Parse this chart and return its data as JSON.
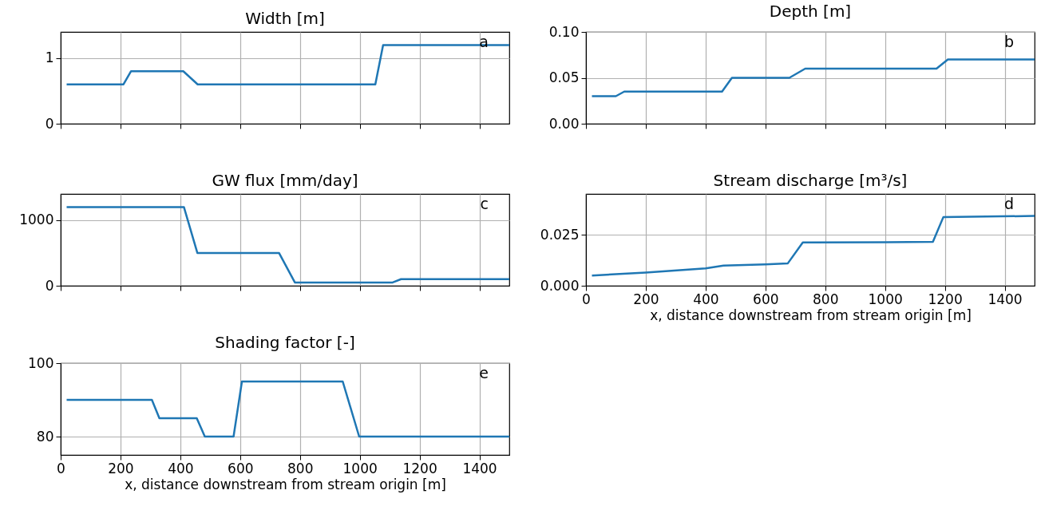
{
  "chart_data": [
    {
      "type": "line",
      "title": "Width [m]",
      "x": [
        20,
        210,
        235,
        410,
        458,
        1052,
        1078,
        1500
      ],
      "series": [
        {
          "color": "#1f77b4",
          "values": [
            0.6,
            0.6,
            0.8,
            0.8,
            0.6,
            0.6,
            1.2,
            1.2
          ]
        }
      ],
      "xlim": [
        0,
        1500
      ],
      "xticks": [
        0,
        200,
        400,
        600,
        800,
        1000,
        1200,
        1400
      ],
      "ylim": [
        0,
        1.4
      ],
      "yticks": [
        0,
        1
      ],
      "grid": true,
      "tick_labels": "y",
      "annotations": [
        "a"
      ]
    },
    {
      "type": "line",
      "title": "Depth [m]",
      "x": [
        20,
        100,
        128,
        455,
        488,
        680,
        733,
        1172,
        1210,
        1500
      ],
      "series": [
        {
          "color": "#1f77b4",
          "values": [
            0.03,
            0.03,
            0.035,
            0.035,
            0.05,
            0.05,
            0.06,
            0.06,
            0.07,
            0.07
          ]
        }
      ],
      "xlim": [
        0,
        1500
      ],
      "xticks": [
        0,
        200,
        400,
        600,
        800,
        1000,
        1200,
        1400
      ],
      "ylim": [
        0,
        0.1
      ],
      "yticks": [
        {
          "value": 0,
          "label": "0.00"
        },
        {
          "value": 0.05,
          "label": "0.05"
        },
        {
          "value": 0.1,
          "label": "0.10"
        }
      ],
      "grid": true,
      "tick_labels": "y",
      "annotations": [
        "b"
      ]
    },
    {
      "type": "line",
      "title": "GW flux [mm/day]",
      "x": [
        20,
        412,
        457,
        730,
        783,
        1110,
        1138,
        1500
      ],
      "series": [
        {
          "color": "#1f77b4",
          "values": [
            1200,
            1200,
            500,
            500,
            50,
            50,
            100,
            100
          ]
        }
      ],
      "xlim": [
        0,
        1500
      ],
      "xticks": [
        0,
        200,
        400,
        600,
        800,
        1000,
        1200,
        1400
      ],
      "ylim": [
        0,
        1400
      ],
      "yticks": [
        0,
        1000
      ],
      "grid": true,
      "tick_labels": "y",
      "annotations": [
        "c"
      ]
    },
    {
      "type": "line",
      "title": "Stream discharge [m³/s]",
      "xlabel": "x, distance downstream from stream origin [m]",
      "x": [
        20,
        200,
        400,
        460,
        600,
        675,
        725,
        1000,
        1160,
        1195,
        1500
      ],
      "series": [
        {
          "color": "#1f77b4",
          "values": [
            0.005,
            0.0065,
            0.0085,
            0.0099,
            0.0105,
            0.011,
            0.0212,
            0.0213,
            0.0215,
            0.0337,
            0.0342
          ]
        }
      ],
      "xlim": [
        0,
        1500
      ],
      "xticks": [
        0,
        200,
        400,
        600,
        800,
        1000,
        1200,
        1400
      ],
      "ylim": [
        0,
        0.045
      ],
      "yticks": [
        {
          "value": 0,
          "label": "0.000"
        },
        {
          "value": 0.025,
          "label": "0.025"
        }
      ],
      "grid": true,
      "annotations": [
        "d"
      ]
    },
    {
      "type": "line",
      "title": "Shading factor [-]",
      "xlabel": "x, distance downstream from stream origin [m]",
      "x": [
        20,
        305,
        330,
        455,
        482,
        578,
        606,
        943,
        998,
        1500
      ],
      "series": [
        {
          "color": "#1f77b4",
          "values": [
            90,
            90,
            85,
            85,
            80,
            80,
            95,
            95,
            80,
            80
          ]
        }
      ],
      "xlim": [
        0,
        1500
      ],
      "xticks": [
        0,
        200,
        400,
        600,
        800,
        1000,
        1200,
        1400
      ],
      "ylim": [
        75,
        100
      ],
      "yticks": [
        80,
        100
      ],
      "grid": true,
      "annotations": [
        "e"
      ]
    }
  ]
}
